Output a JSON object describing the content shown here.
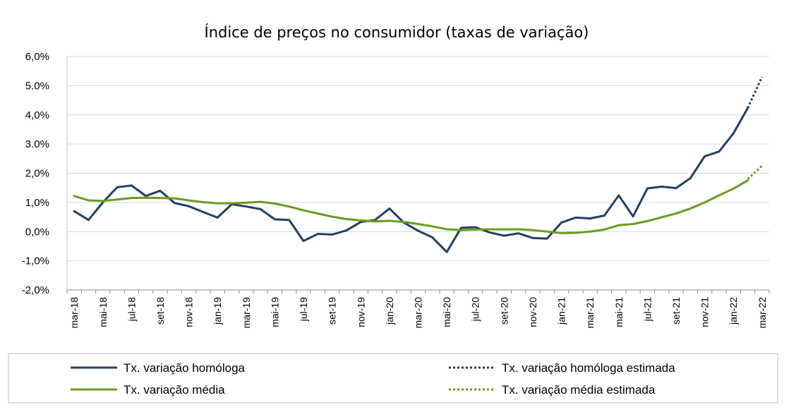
{
  "chart_data": {
    "type": "line",
    "title": "Índice de preços no consumidor  (taxas  de variação)",
    "xlabel": "",
    "ylabel": "",
    "ylim": [
      -2.0,
      6.0
    ],
    "y_ticks": [
      "6,0%",
      "5.0%",
      "4,0%",
      "3.0%",
      "2,0%",
      "1,0%",
      "0,0%",
      "-1,0%",
      "-2,0%"
    ],
    "y_tick_values": [
      6,
      5,
      4,
      3,
      2,
      1,
      0,
      -1,
      -2
    ],
    "grid": true,
    "legend_position": "bottom",
    "x_tick_labels": [
      "mar-18",
      "mai-18",
      "jul-18",
      "set-18",
      "nov-18",
      "jan-19",
      "mar-19",
      "mai-19",
      "jul-19",
      "set-19",
      "nov-19",
      "jan-20",
      "mar-20",
      "mai-20",
      "jul-20",
      "set-20",
      "nov-20",
      "jan-21",
      "mar-21",
      "mai-21",
      "jul-21",
      "set-21",
      "nov-21",
      "jan-22",
      "mar-22"
    ],
    "x": [
      "mar-18",
      "abr-18",
      "mai-18",
      "jun-18",
      "jul-18",
      "ago-18",
      "set-18",
      "out-18",
      "nov-18",
      "dez-18",
      "jan-19",
      "fev-19",
      "mar-19",
      "abr-19",
      "mai-19",
      "jun-19",
      "jul-19",
      "ago-19",
      "set-19",
      "out-19",
      "nov-19",
      "dez-19",
      "jan-20",
      "fev-20",
      "mar-20",
      "abr-20",
      "mai-20",
      "jun-20",
      "jul-20",
      "ago-20",
      "set-20",
      "out-20",
      "nov-20",
      "dez-20",
      "jan-21",
      "fev-21",
      "mar-21",
      "abr-21",
      "mai-21",
      "jun-21",
      "jul-21",
      "ago-21",
      "set-21",
      "out-21",
      "nov-21",
      "dez-21",
      "jan-22",
      "fev-22",
      "mar-22"
    ],
    "series": [
      {
        "name": "Tx. variação homóloga",
        "color": "#243f60",
        "style": "solid",
        "values": [
          0.7,
          0.4,
          1.0,
          1.52,
          1.58,
          1.22,
          1.4,
          0.98,
          0.87,
          0.67,
          0.48,
          0.94,
          0.86,
          0.77,
          0.42,
          0.4,
          -0.32,
          -0.08,
          -0.1,
          0.04,
          0.33,
          0.4,
          0.79,
          0.31,
          0.03,
          -0.2,
          -0.7,
          0.13,
          0.15,
          -0.03,
          -0.14,
          -0.06,
          -0.22,
          -0.24,
          0.31,
          0.48,
          0.45,
          0.55,
          1.24,
          0.52,
          1.48,
          1.54,
          1.49,
          1.83,
          2.58,
          2.74,
          3.36,
          4.23,
          null
        ]
      },
      {
        "name": "Tx. variação homóloga estimada",
        "color": "#243f60",
        "style": "dotted",
        "values": [
          null,
          null,
          null,
          null,
          null,
          null,
          null,
          null,
          null,
          null,
          null,
          null,
          null,
          null,
          null,
          null,
          null,
          null,
          null,
          null,
          null,
          null,
          null,
          null,
          null,
          null,
          null,
          null,
          null,
          null,
          null,
          null,
          null,
          null,
          null,
          null,
          null,
          null,
          null,
          null,
          null,
          null,
          null,
          null,
          null,
          null,
          null,
          4.23,
          5.3
        ]
      },
      {
        "name": "Tx. variação média",
        "color": "#6a9a1f",
        "style": "solid",
        "values": [
          1.22,
          1.07,
          1.05,
          1.1,
          1.15,
          1.16,
          1.15,
          1.14,
          1.07,
          1.01,
          0.97,
          0.97,
          0.99,
          1.02,
          0.96,
          0.86,
          0.73,
          0.62,
          0.51,
          0.43,
          0.38,
          0.35,
          0.37,
          0.33,
          0.26,
          0.18,
          0.08,
          0.05,
          0.07,
          0.08,
          0.08,
          0.08,
          0.05,
          0.0,
          -0.05,
          -0.04,
          0.0,
          0.07,
          0.22,
          0.26,
          0.36,
          0.49,
          0.62,
          0.79,
          1.0,
          1.24,
          1.47,
          1.75,
          null
        ]
      },
      {
        "name": "Tx. variação média  estimada",
        "color": "#6a9a1f",
        "style": "dotted",
        "values": [
          null,
          null,
          null,
          null,
          null,
          null,
          null,
          null,
          null,
          null,
          null,
          null,
          null,
          null,
          null,
          null,
          null,
          null,
          null,
          null,
          null,
          null,
          null,
          null,
          null,
          null,
          null,
          null,
          null,
          null,
          null,
          null,
          null,
          null,
          null,
          null,
          null,
          null,
          null,
          null,
          null,
          null,
          null,
          null,
          null,
          null,
          null,
          1.8,
          2.25
        ]
      }
    ]
  }
}
